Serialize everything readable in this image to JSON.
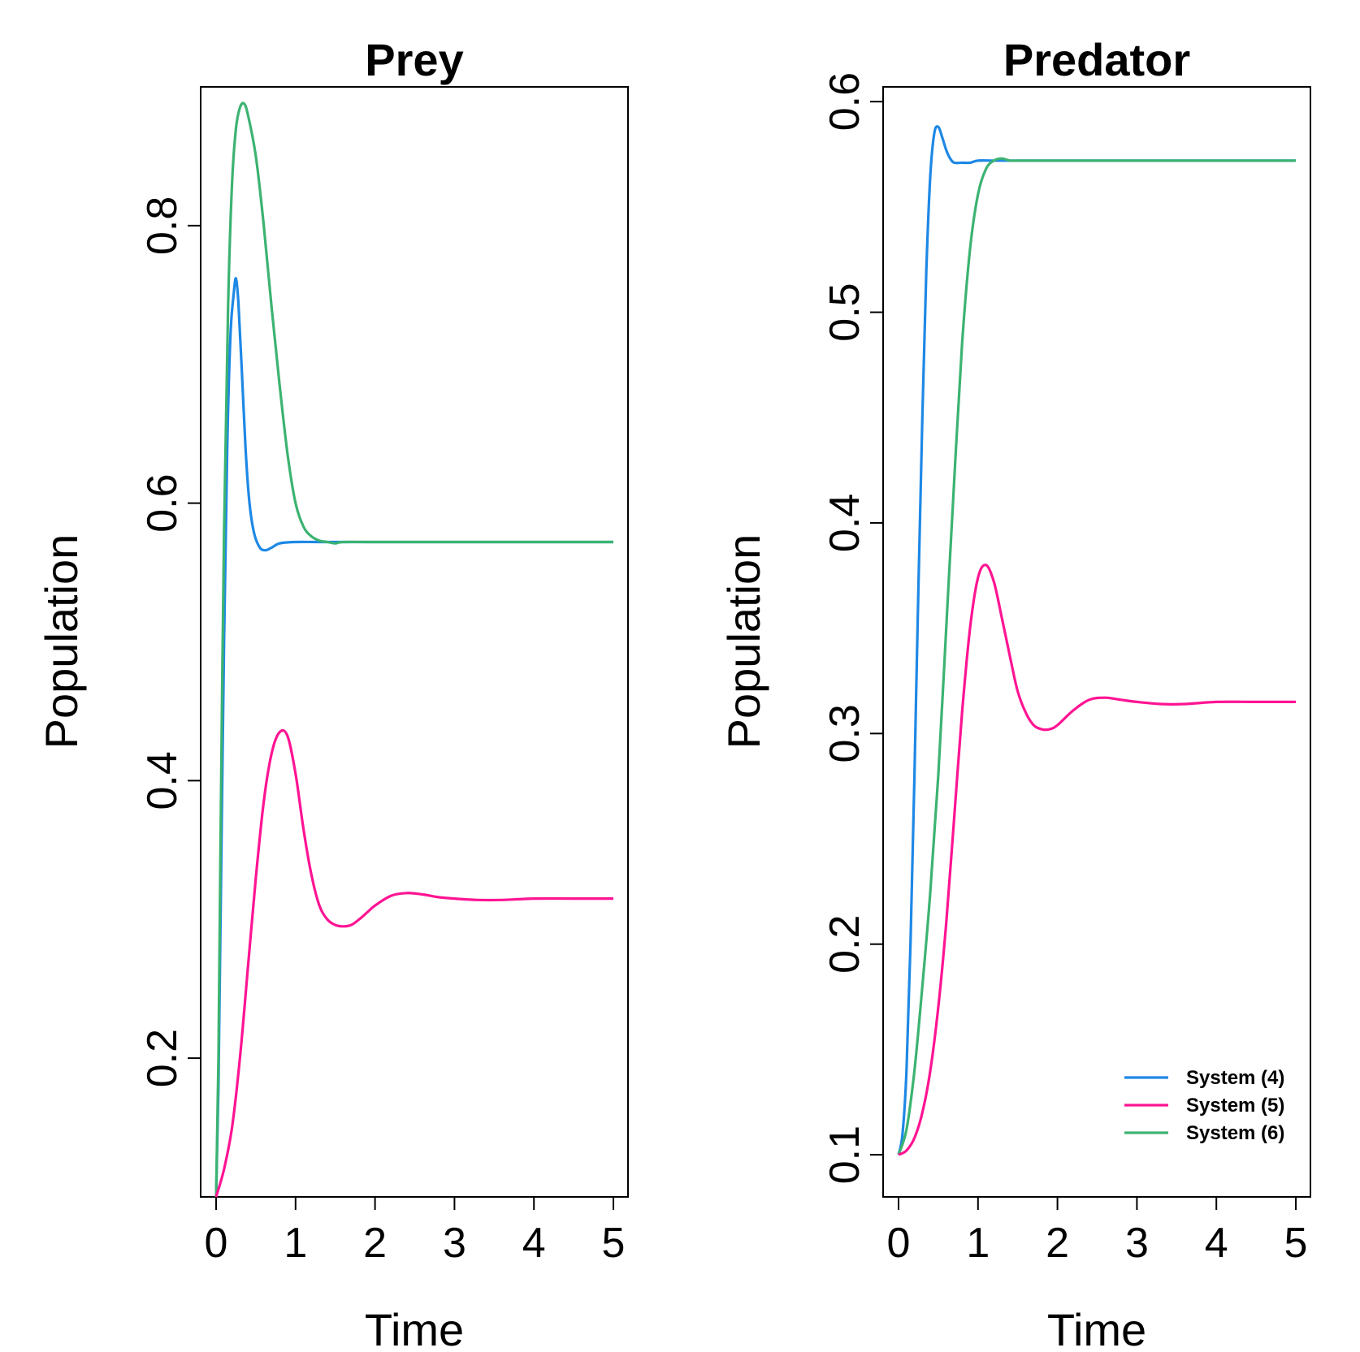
{
  "chart_data": [
    {
      "type": "line",
      "title": "Prey",
      "xlabel": "Time",
      "ylabel": "Population",
      "xlim": [
        0,
        5
      ],
      "ylim": [
        0.1,
        0.9
      ],
      "xticks": [
        "0",
        "1",
        "2",
        "3",
        "4",
        "5"
      ],
      "yticks": [
        "0.2",
        "0.4",
        "0.6",
        "0.8"
      ],
      "series": [
        {
          "name": "System (4)",
          "color": "#1E88E5",
          "x": [
            0,
            0.03,
            0.06,
            0.1,
            0.14,
            0.18,
            0.22,
            0.25,
            0.28,
            0.32,
            0.37,
            0.42,
            0.48,
            0.55,
            0.62,
            0.7,
            0.8,
            1.0,
            1.3,
            2.0,
            3.0,
            4.0,
            5.0
          ],
          "y": [
            0.1,
            0.18,
            0.32,
            0.5,
            0.64,
            0.72,
            0.75,
            0.762,
            0.745,
            0.7,
            0.64,
            0.6,
            0.578,
            0.568,
            0.566,
            0.568,
            0.571,
            0.572,
            0.572,
            0.572,
            0.572,
            0.572,
            0.572
          ]
        },
        {
          "name": "System (6)",
          "color": "#3CB371",
          "x": [
            0,
            0.03,
            0.06,
            0.1,
            0.15,
            0.2,
            0.25,
            0.3,
            0.35,
            0.4,
            0.5,
            0.6,
            0.7,
            0.8,
            0.9,
            1.0,
            1.1,
            1.2,
            1.3,
            1.4,
            1.5,
            1.6,
            2.0,
            3.0,
            4.0,
            5.0
          ],
          "y": [
            0.1,
            0.2,
            0.38,
            0.58,
            0.74,
            0.83,
            0.87,
            0.885,
            0.888,
            0.88,
            0.85,
            0.8,
            0.74,
            0.685,
            0.635,
            0.6,
            0.583,
            0.576,
            0.573,
            0.572,
            0.571,
            0.572,
            0.572,
            0.572,
            0.572,
            0.572
          ]
        },
        {
          "name": "System (5)",
          "color": "#FF1493",
          "x": [
            0,
            0.1,
            0.2,
            0.3,
            0.4,
            0.5,
            0.6,
            0.7,
            0.8,
            0.9,
            1.0,
            1.1,
            1.2,
            1.3,
            1.4,
            1.5,
            1.6,
            1.7,
            1.8,
            1.9,
            2.0,
            2.2,
            2.4,
            2.6,
            2.8,
            3.0,
            3.3,
            3.6,
            4.0,
            4.5,
            5.0
          ],
          "y": [
            0.1,
            0.12,
            0.15,
            0.2,
            0.265,
            0.33,
            0.385,
            0.42,
            0.435,
            0.432,
            0.405,
            0.365,
            0.332,
            0.31,
            0.3,
            0.296,
            0.295,
            0.296,
            0.3,
            0.305,
            0.31,
            0.317,
            0.319,
            0.318,
            0.316,
            0.315,
            0.314,
            0.314,
            0.315,
            0.315,
            0.315
          ]
        }
      ]
    },
    {
      "type": "line",
      "title": "Predator",
      "xlabel": "Time",
      "ylabel": "Population",
      "xlim": [
        0,
        5
      ],
      "ylim": [
        0.08,
        0.607
      ],
      "xticks": [
        "0",
        "1",
        "2",
        "3",
        "4",
        "5"
      ],
      "yticks": [
        "0.1",
        "0.2",
        "0.3",
        "0.4",
        "0.5",
        "0.6"
      ],
      "legend": {
        "position": "bottom-right",
        "entries": [
          "System (4)",
          "System (5)",
          "System (6)"
        ]
      },
      "series": [
        {
          "name": "System (4)",
          "color": "#1E88E5",
          "x": [
            0,
            0.05,
            0.1,
            0.15,
            0.2,
            0.25,
            0.3,
            0.35,
            0.4,
            0.45,
            0.5,
            0.55,
            0.6,
            0.65,
            0.7,
            0.8,
            0.9,
            1.0,
            1.2,
            1.5,
            2.0,
            3.0,
            4.0,
            5.0
          ],
          "y": [
            0.1,
            0.11,
            0.14,
            0.2,
            0.28,
            0.37,
            0.45,
            0.52,
            0.565,
            0.585,
            0.588,
            0.583,
            0.577,
            0.573,
            0.571,
            0.571,
            0.571,
            0.572,
            0.572,
            0.572,
            0.572,
            0.572,
            0.572,
            0.572
          ]
        },
        {
          "name": "System (6)",
          "color": "#3CB371",
          "x": [
            0,
            0.1,
            0.2,
            0.3,
            0.4,
            0.5,
            0.6,
            0.7,
            0.8,
            0.9,
            1.0,
            1.1,
            1.2,
            1.3,
            1.4,
            1.5,
            2.0,
            3.0,
            4.0,
            5.0
          ],
          "y": [
            0.1,
            0.112,
            0.14,
            0.18,
            0.225,
            0.28,
            0.35,
            0.42,
            0.485,
            0.53,
            0.556,
            0.568,
            0.572,
            0.573,
            0.572,
            0.572,
            0.572,
            0.572,
            0.572,
            0.572
          ]
        },
        {
          "name": "System (5)",
          "color": "#FF1493",
          "x": [
            0,
            0.1,
            0.2,
            0.3,
            0.4,
            0.5,
            0.6,
            0.7,
            0.8,
            0.9,
            1.0,
            1.1,
            1.2,
            1.3,
            1.4,
            1.5,
            1.6,
            1.7,
            1.8,
            1.9,
            2.0,
            2.2,
            2.4,
            2.6,
            2.8,
            3.0,
            3.3,
            3.6,
            4.0,
            4.5,
            5.0
          ],
          "y": [
            0.1,
            0.102,
            0.108,
            0.12,
            0.14,
            0.17,
            0.21,
            0.26,
            0.31,
            0.35,
            0.374,
            0.38,
            0.372,
            0.355,
            0.337,
            0.32,
            0.31,
            0.304,
            0.302,
            0.302,
            0.304,
            0.311,
            0.316,
            0.317,
            0.316,
            0.315,
            0.314,
            0.314,
            0.315,
            0.315,
            0.315
          ]
        }
      ]
    }
  ]
}
